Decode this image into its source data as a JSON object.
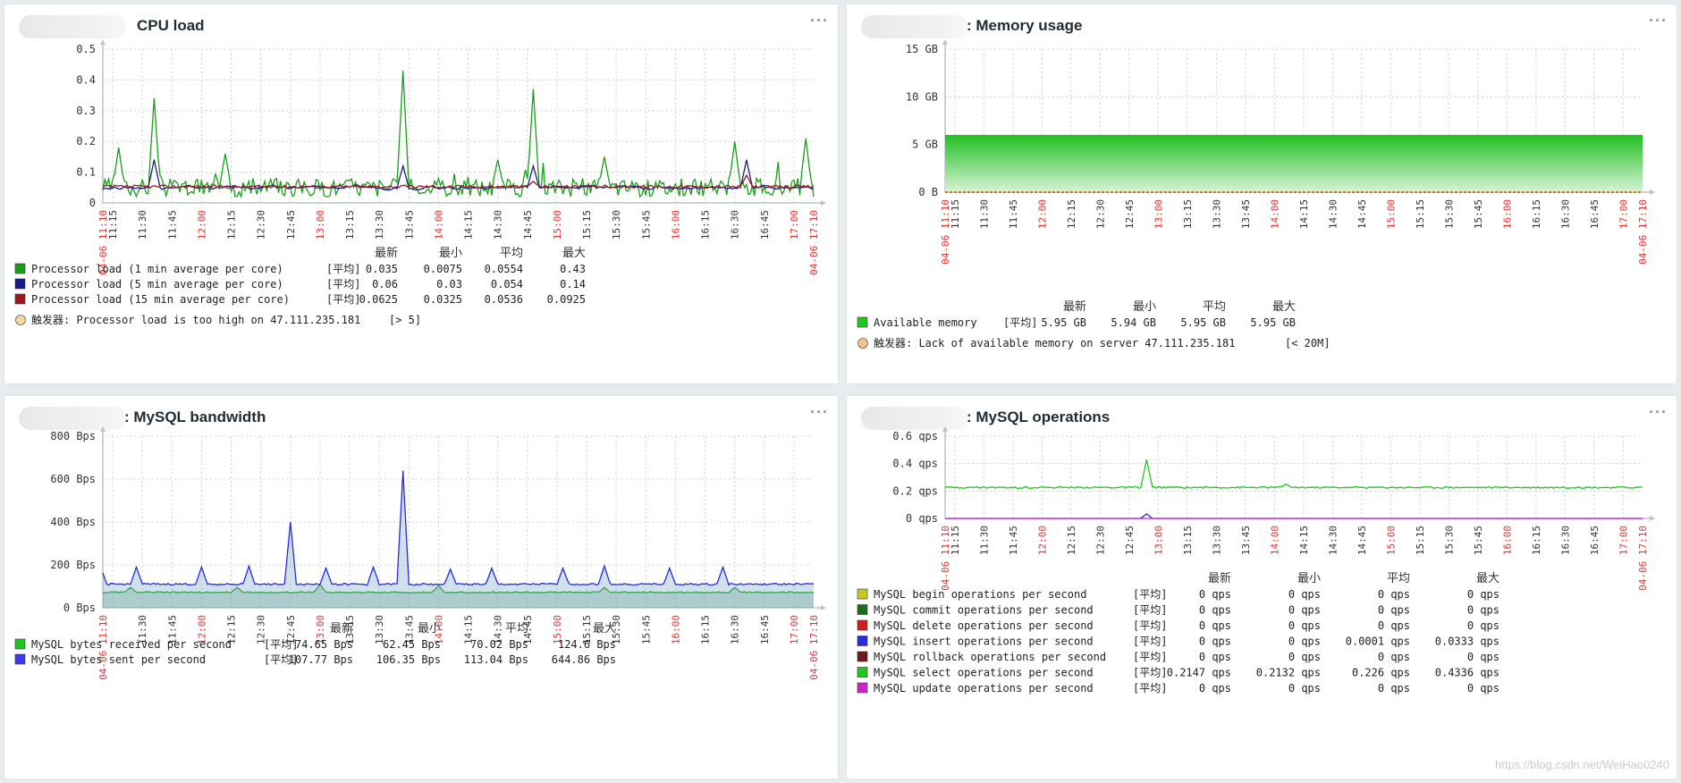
{
  "panels": [
    {
      "title": "CPU load",
      "menu": "···",
      "chart_data": {
        "type": "line",
        "title": "CPU load",
        "ylim": [
          0,
          0.5
        ],
        "y_ticks": [
          "0",
          "0.1",
          "0.2",
          "0.3",
          "0.4",
          "0.5"
        ],
        "x_range": [
          "11:10",
          "17:10"
        ],
        "x_labels": [
          "04-06 11:10",
          "11:15",
          "11:30",
          "11:45",
          "12:00",
          "12:15",
          "12:30",
          "12:45",
          "13:00",
          "13:15",
          "13:30",
          "13:45",
          "14:00",
          "14:15",
          "14:30",
          "14:45",
          "15:00",
          "15:15",
          "15:30",
          "15:45",
          "16:00",
          "16:15",
          "16:30",
          "16:45",
          "17:00",
          "04-06 17:10"
        ],
        "series": [
          {
            "name": "Processor load (1 min average per core)",
            "color": "#1a9e1a",
            "pattern": "spiky",
            "base": 0.05,
            "noise": 0.03,
            "spikes": [
              [
                11.3,
                0.18
              ],
              [
                11.6,
                0.34
              ],
              [
                12.2,
                0.16
              ],
              [
                13.7,
                0.43
              ],
              [
                14.5,
                0.14
              ],
              [
                14.8,
                0.37
              ],
              [
                15.4,
                0.15
              ],
              [
                16.5,
                0.2
              ],
              [
                17.1,
                0.21
              ]
            ]
          },
          {
            "name": "Processor load (5 min average per core)",
            "color": "#1a1a8e",
            "pattern": "smooth",
            "base": 0.05,
            "noise": 0.012,
            "spikes": [
              [
                11.6,
                0.14
              ],
              [
                13.7,
                0.12
              ],
              [
                14.8,
                0.12
              ],
              [
                16.6,
                0.14
              ]
            ]
          },
          {
            "name": "Processor load (15 min average per core)",
            "color": "#9e1a1a",
            "pattern": "flat",
            "base": 0.053,
            "noise": 0.005,
            "spikes": [
              [
                14.8,
                0.07
              ],
              [
                16.6,
                0.09
              ]
            ]
          }
        ],
        "legend": {
          "headers": [
            "最新",
            "最小",
            "平均",
            "最大"
          ],
          "rows": [
            {
              "name": "Processor load (1 min average per core)",
              "color": "#1a9e1a",
              "func": "[平均]",
              "last": "0.035",
              "min": "0.0075",
              "avg": "0.0554",
              "max": "0.43"
            },
            {
              "name": "Processor load (5 min average per core)",
              "color": "#1a1a8e",
              "func": "[平均]",
              "last": "0.06",
              "min": "0.03",
              "avg": "0.054",
              "max": "0.14"
            },
            {
              "name": "Processor load (15 min average per core)",
              "color": "#9e1a1a",
              "func": "[平均]",
              "last": "0.0625",
              "min": "0.0325",
              "avg": "0.0536",
              "max": "0.0925"
            }
          ],
          "trigger": "触发器: Processor load is too high on 47.111.235.181",
          "trigger_value": "[> 5]",
          "trigger_color": "#f5d7a0"
        }
      }
    },
    {
      "title": ": Memory usage",
      "menu": "···",
      "chart_data": {
        "type": "area",
        "title": "Memory usage",
        "ylim": [
          0,
          15
        ],
        "y_ticks": [
          "0 B",
          "5 GB",
          "10 GB",
          "15 GB"
        ],
        "x_range": [
          "11:10",
          "17:10"
        ],
        "x_labels": [
          "04-06 11:10",
          "11:15",
          "11:30",
          "11:45",
          "12:00",
          "12:15",
          "12:30",
          "12:45",
          "13:00",
          "13:15",
          "13:30",
          "13:45",
          "14:00",
          "14:15",
          "14:30",
          "14:45",
          "15:00",
          "15:15",
          "15:30",
          "15:45",
          "16:00",
          "16:15",
          "16:30",
          "16:45",
          "17:00",
          "04-06 17:10"
        ],
        "series": [
          {
            "name": "Available memory",
            "color": "#1ec81e",
            "pattern": "flat",
            "base": 5.95,
            "noise": 0,
            "spikes": []
          }
        ],
        "legend": {
          "headers": [
            "最新",
            "最小",
            "平均",
            "最大"
          ],
          "rows": [
            {
              "name": "Available memory",
              "color": "#1ec81e",
              "func": "[平均]",
              "last": "5.95 GB",
              "min": "5.94 GB",
              "avg": "5.95 GB",
              "max": "5.95 GB"
            }
          ],
          "trigger": "触发器: Lack of available memory on server 47.111.235.181",
          "trigger_value": "[< 20M]",
          "trigger_color": "#f5c18a"
        }
      }
    },
    {
      "title": ": MySQL bandwidth",
      "menu": "···",
      "chart_data": {
        "type": "line",
        "title": "MySQL bandwidth",
        "ylim": [
          0,
          800
        ],
        "y_ticks": [
          "0 Bps",
          "200 Bps",
          "400 Bps",
          "600 Bps",
          "800 Bps"
        ],
        "x_range": [
          "11:10",
          "17:10"
        ],
        "x_labels": [
          "04-06 11:10",
          "11:30",
          "11:45",
          "12:00",
          "12:15",
          "12:30",
          "12:45",
          "13:00",
          "13:15",
          "13:30",
          "13:45",
          "14:00",
          "14:15",
          "14:30",
          "14:45",
          "15:00",
          "15:15",
          "15:30",
          "15:45",
          "16:00",
          "16:15",
          "16:30",
          "16:45",
          "17:00",
          "04-06 17:10"
        ],
        "series": [
          {
            "name": "MySQL bytes received per second",
            "color": "#1a9e1a",
            "pattern": "flat",
            "base": 72,
            "noise": 3,
            "spikes": [
              [
                11.4,
                95
              ],
              [
                12.3,
                95
              ],
              [
                13.0,
                110
              ],
              [
                14.0,
                105
              ],
              [
                15.4,
                95
              ],
              [
                16.5,
                95
              ]
            ]
          },
          {
            "name": "MySQL bytes sent per second",
            "color": "#2a2ae0",
            "pattern": "flat",
            "base": 110,
            "noise": 4,
            "spikes": [
              [
                11.15,
                190
              ],
              [
                11.45,
                190
              ],
              [
                12.0,
                190
              ],
              [
                12.4,
                195
              ],
              [
                12.75,
                400
              ],
              [
                13.05,
                185
              ],
              [
                13.45,
                190
              ],
              [
                13.7,
                640
              ],
              [
                14.1,
                180
              ],
              [
                14.45,
                185
              ],
              [
                15.05,
                185
              ],
              [
                15.4,
                195
              ],
              [
                15.95,
                185
              ],
              [
                16.4,
                190
              ]
            ]
          }
        ],
        "legend": {
          "headers": [
            "最新",
            "最小",
            "平均",
            "最大"
          ],
          "rows": [
            {
              "name": "MySQL bytes received per second",
              "color": "#1ec81e",
              "func": "[平均]",
              "last": "74.65 Bps",
              "min": "62.45 Bps",
              "avg": "70.02 Bps",
              "max": "124.6 Bps"
            },
            {
              "name": "MySQL bytes sent per second",
              "color": "#3a3af0",
              "func": "[平均]",
              "last": "107.77 Bps",
              "min": "106.35 Bps",
              "avg": "113.04 Bps",
              "max": "644.86 Bps"
            }
          ]
        }
      }
    },
    {
      "title": ": MySQL operations",
      "menu": "···",
      "watermark": "https://blog.csdn.net/WeiHao0240",
      "chart_data": {
        "type": "line",
        "title": "MySQL operations",
        "ylim": [
          0,
          0.6
        ],
        "y_ticks": [
          "0 qps",
          "0.2 qps",
          "0.4 qps",
          "0.6 qps"
        ],
        "x_range": [
          "11:10",
          "17:10"
        ],
        "x_labels": [
          "04-06 11:10",
          "11:15",
          "11:30",
          "11:45",
          "12:00",
          "12:15",
          "12:30",
          "12:45",
          "13:00",
          "13:15",
          "13:30",
          "13:45",
          "14:00",
          "14:15",
          "14:30",
          "14:45",
          "15:00",
          "15:15",
          "15:30",
          "15:45",
          "16:00",
          "16:15",
          "16:30",
          "16:45",
          "17:00",
          "04-06 17:10"
        ],
        "series": [
          {
            "name": "MySQL select operations per second",
            "color": "#1ec81e",
            "pattern": "flat",
            "base": 0.226,
            "noise": 0.006,
            "spikes": [
              [
                12.9,
                0.43
              ],
              [
                14.1,
                0.25
              ]
            ]
          },
          {
            "name": "MySQL insert operations per second",
            "color": "#2a2ae0",
            "pattern": "flat",
            "base": 0.0,
            "noise": 0,
            "spikes": [
              [
                12.9,
                0.033
              ]
            ]
          },
          {
            "name": "MySQL update operations per second",
            "color": "#d020d0",
            "pattern": "flat",
            "base": 0.0,
            "noise": 0,
            "spikes": []
          }
        ],
        "legend": {
          "headers": [
            "最新",
            "最小",
            "平均",
            "最大"
          ],
          "rows": [
            {
              "name": "MySQL begin operations per second",
              "color": "#c8c81e",
              "func": "[平均]",
              "last": "0 qps",
              "min": "0 qps",
              "avg": "0 qps",
              "max": "0 qps"
            },
            {
              "name": "MySQL commit operations per second",
              "color": "#1a6e1a",
              "func": "[平均]",
              "last": "0 qps",
              "min": "0 qps",
              "avg": "0 qps",
              "max": "0 qps"
            },
            {
              "name": "MySQL delete operations per second",
              "color": "#d01e1e",
              "func": "[平均]",
              "last": "0 qps",
              "min": "0 qps",
              "avg": "0 qps",
              "max": "0 qps"
            },
            {
              "name": "MySQL insert operations per second",
              "color": "#2a2ae0",
              "func": "[平均]",
              "last": "0 qps",
              "min": "0 qps",
              "avg": "0.0001 qps",
              "max": "0.0333 qps"
            },
            {
              "name": "MySQL rollback operations per second",
              "color": "#6e1a1a",
              "func": "[平均]",
              "last": "0 qps",
              "min": "0 qps",
              "avg": "0 qps",
              "max": "0 qps"
            },
            {
              "name": "MySQL select operations per second",
              "color": "#1ec81e",
              "func": "[平均]",
              "last": "0.2147 qps",
              "min": "0.2132 qps",
              "avg": "0.226 qps",
              "max": "0.4336 qps"
            },
            {
              "name": "MySQL update operations per second",
              "color": "#d020d0",
              "func": "[平均]",
              "last": "0 qps",
              "min": "0 qps",
              "avg": "0 qps",
              "max": "0 qps"
            }
          ]
        }
      }
    }
  ]
}
